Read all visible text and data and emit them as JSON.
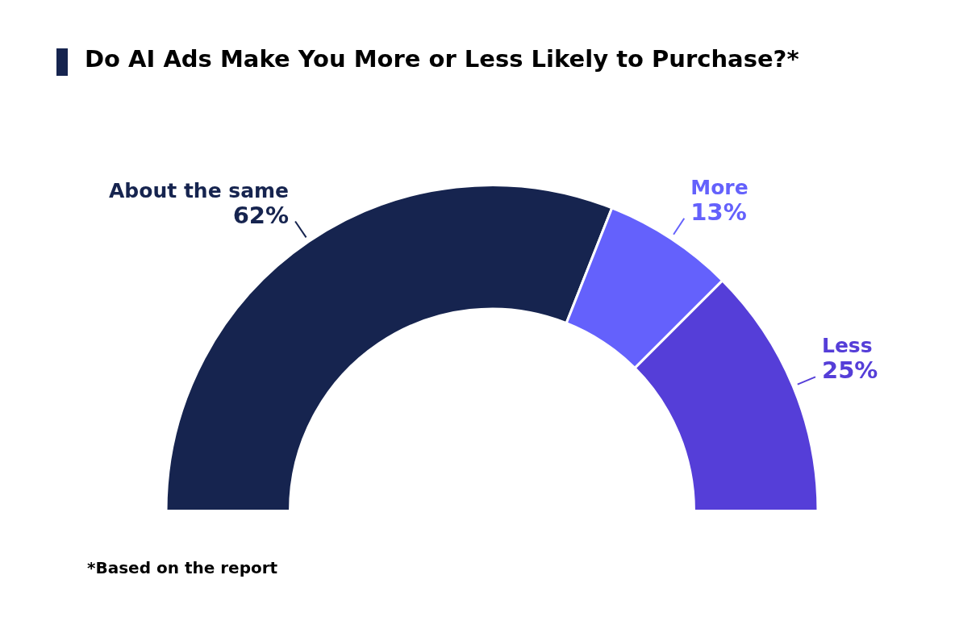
{
  "chart_data": {
    "type": "donut",
    "title": "Do AI Ads Make You More or Less Likely to Purchase?*",
    "categories": [
      "About the same",
      "More",
      "Less"
    ],
    "values": [
      62,
      13,
      25
    ],
    "colors": [
      "#16244f",
      "#6461fc",
      "#553ed8"
    ],
    "value_labels": [
      "62%",
      "13%",
      "25%"
    ],
    "annotations": [
      "*Based on the report"
    ]
  }
}
